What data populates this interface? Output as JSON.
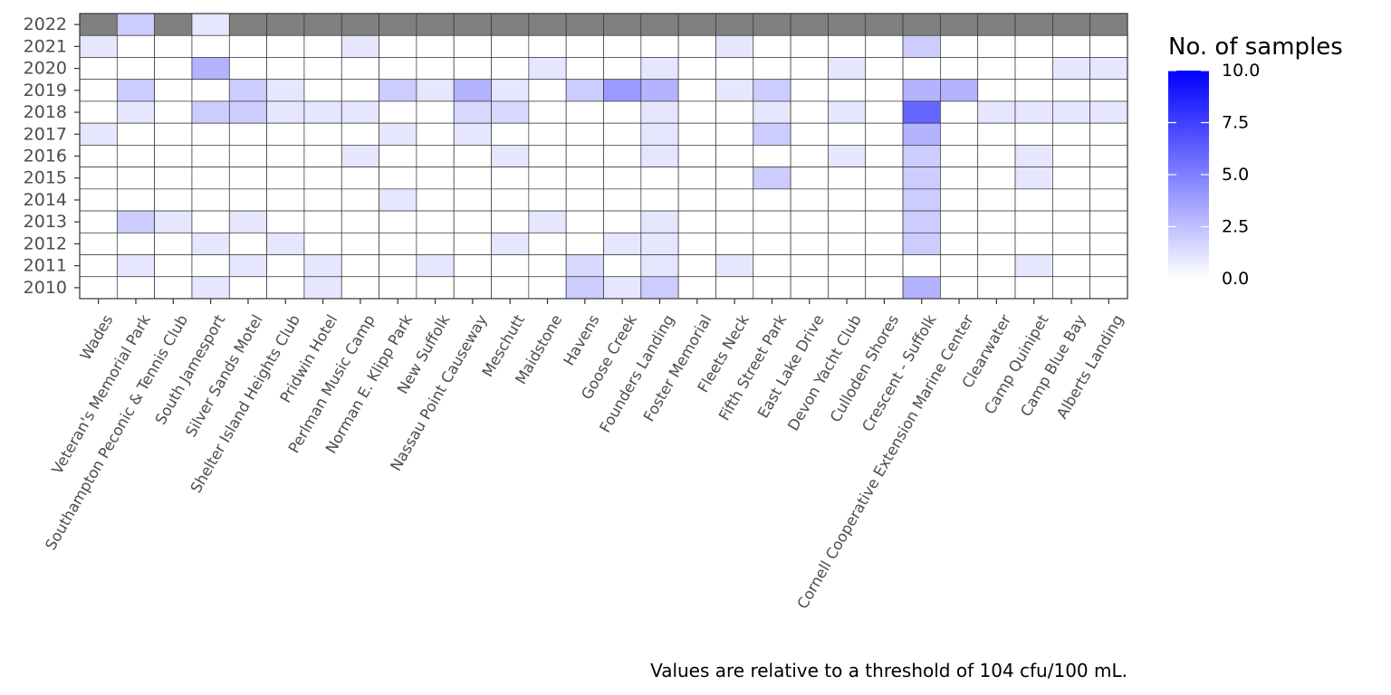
{
  "chart_data": {
    "type": "heatmap",
    "caption": "Values are relative to a threshold of 104 cfu/100 mL.",
    "legend": {
      "title": "No. of samples",
      "range": [
        0,
        10
      ],
      "ticks": [
        "0.0",
        "2.5",
        "5.0",
        "7.5",
        "10.0"
      ],
      "tick_values": [
        0,
        2.5,
        5,
        7.5,
        10
      ],
      "low_color": "#ffffff",
      "high_color": "#0000ff"
    },
    "missing_color": "#808080",
    "grid": true,
    "x_categories": [
      "Wades",
      "Veteran's Memorial Park",
      "Southampton Peconic & Tennis Club",
      "South Jamesport",
      "Silver Sands Motel",
      "Shelter Island Heights Club",
      "Pridwin Hotel",
      "Perlman Music Camp",
      "Norman E. Klipp Park",
      "New Suffolk",
      "Nassau Point Causeway",
      "Meschutt",
      "Maidstone",
      "Havens",
      "Goose Creek",
      "Founders Landing",
      "Foster Memorial",
      "Fleets Neck",
      "Fifth Street Park",
      "East Lake Drive",
      "Devon Yacht Club",
      "Culloden Shores",
      "Crescent - Suffolk",
      "Cornell Cooperative Extension Marine Center",
      "Clearwater",
      "Camp Quinipet",
      "Camp Blue Bay",
      "Alberts Landing"
    ],
    "y_categories": [
      "2022",
      "2021",
      "2020",
      "2019",
      "2018",
      "2017",
      "2016",
      "2015",
      "2014",
      "2013",
      "2012",
      "2011",
      "2010"
    ],
    "values": [
      [
        null,
        2,
        null,
        1,
        null,
        null,
        null,
        null,
        null,
        null,
        null,
        null,
        null,
        null,
        null,
        null,
        null,
        null,
        null,
        null,
        null,
        null,
        null,
        null,
        null,
        null,
        null,
        null
      ],
      [
        1,
        0,
        0,
        0,
        0,
        0,
        0,
        1,
        0,
        0,
        0,
        0,
        0,
        0,
        0,
        0,
        0,
        1,
        0,
        0,
        0,
        0,
        2,
        0,
        0,
        0,
        0,
        0
      ],
      [
        0,
        0,
        0,
        3,
        0,
        0,
        0,
        0,
        0,
        0,
        0,
        0,
        1,
        0,
        0,
        1,
        0,
        0,
        0,
        0,
        1,
        0,
        0,
        0,
        0,
        0,
        1,
        1
      ],
      [
        0,
        2,
        0,
        0,
        2,
        1,
        0,
        0,
        2,
        1,
        3,
        1,
        0,
        2,
        4,
        3,
        0,
        1,
        2,
        0,
        0,
        0,
        3,
        3,
        0,
        0,
        0,
        0
      ],
      [
        0,
        1,
        0,
        2,
        2,
        1,
        1,
        1,
        0,
        0,
        1.5,
        1.5,
        0,
        0,
        0,
        1,
        0,
        0,
        1,
        0,
        1,
        0,
        6,
        0,
        1,
        1,
        1,
        1
      ],
      [
        1,
        0,
        0,
        0,
        0,
        0,
        0,
        0,
        1,
        0,
        1,
        0,
        0,
        0,
        0,
        1,
        0,
        0,
        2,
        0,
        0,
        0,
        3,
        0,
        0,
        0,
        0,
        0
      ],
      [
        0,
        0,
        0,
        0,
        0,
        0,
        0,
        1,
        0,
        0,
        0,
        1,
        0,
        0,
        0,
        1,
        0,
        0,
        0,
        0,
        1,
        0,
        2,
        0,
        0,
        1,
        0,
        0
      ],
      [
        0,
        0,
        0,
        0,
        0,
        0,
        0,
        0,
        0,
        0,
        0,
        0,
        0,
        0,
        0,
        0,
        0,
        0,
        2,
        0,
        0,
        0,
        2,
        0,
        0,
        1,
        0,
        0
      ],
      [
        0,
        0,
        0,
        0,
        0,
        0,
        0,
        0,
        1,
        0,
        0,
        0,
        0,
        0,
        0,
        0,
        0,
        0,
        0,
        0,
        0,
        0,
        2,
        0,
        0,
        0,
        0,
        0
      ],
      [
        0,
        2,
        1,
        0,
        1,
        0,
        0,
        0,
        0,
        0,
        0,
        0,
        1,
        0,
        0,
        1,
        0,
        0,
        0,
        0,
        0,
        0,
        2,
        0,
        0,
        0,
        0,
        0
      ],
      [
        0,
        0,
        0,
        1,
        0,
        1,
        0,
        0,
        0,
        0,
        0,
        1,
        0,
        0,
        1,
        1,
        0,
        0,
        0,
        0,
        0,
        0,
        2,
        0,
        0,
        0,
        0,
        0
      ],
      [
        0,
        1,
        0,
        0,
        1,
        0,
        1,
        0,
        0,
        1,
        0,
        0,
        0,
        1.5,
        0,
        1,
        0,
        1,
        0,
        0,
        0,
        0,
        0,
        0,
        0,
        1,
        0,
        0
      ],
      [
        0,
        0,
        0,
        1,
        0,
        0,
        1,
        0,
        0,
        0,
        0,
        0,
        0,
        2,
        1,
        2,
        0,
        0,
        0,
        0,
        0,
        0,
        3,
        0,
        0,
        0,
        0,
        0
      ]
    ]
  }
}
